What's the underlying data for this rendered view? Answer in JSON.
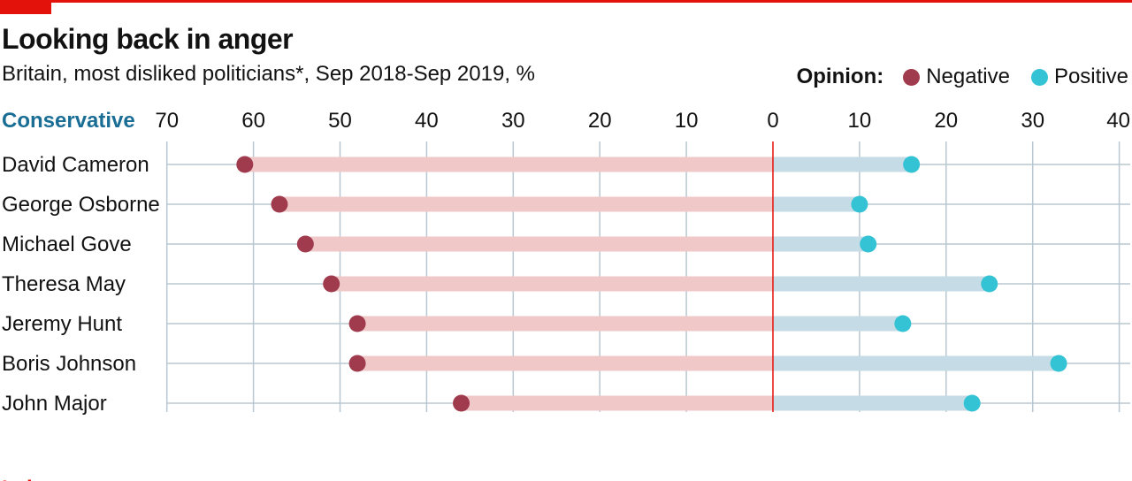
{
  "header": {
    "title": "Looking back in anger",
    "subtitle": "Britain, most disliked politicians*, Sep 2018-Sep 2019, %"
  },
  "legend": {
    "title": "Opinion:",
    "items": [
      {
        "label": "Negative",
        "color": "#a03a4d"
      },
      {
        "label": "Positive",
        "color": "#34c3d4"
      }
    ]
  },
  "colors": {
    "negative_bar": "#f1c8c8",
    "positive_bar": "#c5dbe6",
    "grid": "#b8c7d1",
    "zero_line": "#e3120b",
    "conservative": "#1a6e95",
    "labour": "#e3120b",
    "brand": "#e3120b"
  },
  "chart_data": {
    "type": "dumbbell",
    "x_axis": {
      "negative_range": [
        0,
        70
      ],
      "positive_range": [
        0,
        40
      ],
      "negative_ticks": [
        "70",
        "60",
        "50",
        "40",
        "30",
        "20",
        "10",
        "0"
      ],
      "positive_ticks": [
        "10",
        "20",
        "30",
        "40"
      ]
    },
    "grid": true,
    "groups": [
      {
        "name": "Conservative",
        "rows": [
          {
            "label": "David Cameron",
            "negative": 61,
            "positive": 16
          },
          {
            "label": "George Osborne",
            "negative": 57,
            "positive": 10
          },
          {
            "label": "Michael Gove",
            "negative": 54,
            "positive": 11
          },
          {
            "label": "Theresa May",
            "negative": 51,
            "positive": 25
          },
          {
            "label": "Jeremy Hunt",
            "negative": 48,
            "positive": 15
          },
          {
            "label": "Boris Johnson",
            "negative": 48,
            "positive": 33
          },
          {
            "label": "John Major",
            "negative": 36,
            "positive": 23
          }
        ]
      },
      {
        "name": "Labour",
        "rows": []
      }
    ]
  }
}
